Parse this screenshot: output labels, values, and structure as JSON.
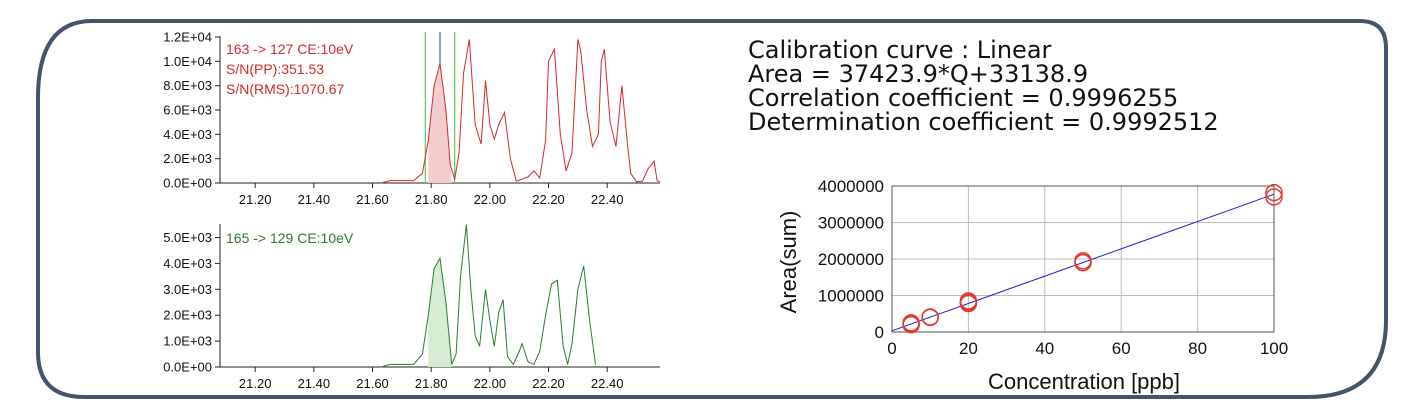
{
  "colors": {
    "frame": "#44546a",
    "red_trace": "#d42a2a",
    "red_fill": "#f4cccc",
    "green_trace": "#2d7a2d",
    "green_fill": "#d6ecd3",
    "integration_marker": "#66d166",
    "peak_marker": "#5a6ee0",
    "regression_line": "#1f1fd6",
    "calibration_points": "#e03a2a"
  },
  "chromatograms": [
    {
      "x_ticks": [
        "21.20",
        "21.40",
        "21.60",
        "21.80",
        "22.00",
        "22.20",
        "22.40"
      ],
      "y_ticks": [
        "0.0E+00",
        "2.0E+03",
        "4.0E+03",
        "6.0E+03",
        "8.0E+03",
        "1.0E+04",
        "1.2E+04"
      ],
      "labels": [
        "163 -> 127 CE:10eV",
        "S/N(PP):351.53",
        "S/N(RMS):1070.67"
      ]
    },
    {
      "x_ticks": [
        "21.20",
        "21.40",
        "21.60",
        "21.80",
        "22.00",
        "22.20",
        "22.40"
      ],
      "y_ticks": [
        "0.0E+00",
        "1.0E+03",
        "2.0E+03",
        "3.0E+03",
        "4.0E+03",
        "5.0E+03"
      ],
      "labels": [
        "165 -> 129 CE:10eV"
      ]
    }
  ],
  "calibration": {
    "lines": [
      "Calibration curve : Linear",
      "Area = 37423.9*Q+33138.9",
      "Correlation coefficient = 0.9996255",
      "Determination coefficient = 0.9992512"
    ]
  },
  "chart_data": [
    {
      "type": "line",
      "x_range": [
        21.08,
        22.58
      ],
      "ylim": [
        0,
        12000
      ],
      "peak_window": [
        21.78,
        21.88
      ],
      "peak_apex": 21.83,
      "series": [
        {
          "x": [
            21.63,
            21.66,
            21.74,
            21.77,
            21.79,
            21.81,
            21.83,
            21.85,
            21.865,
            21.88,
            21.895,
            21.91,
            21.93,
            21.95,
            21.97,
            21.985,
            22.0,
            22.015,
            22.03,
            22.05,
            22.07,
            22.09,
            22.11,
            22.13,
            22.15,
            22.17,
            22.19,
            22.2,
            22.22,
            22.24,
            22.26,
            22.28,
            22.3,
            22.31,
            22.33,
            22.35,
            22.37,
            22.38,
            22.39,
            22.41,
            22.43,
            22.45,
            22.47,
            22.48,
            22.5,
            22.52,
            22.54,
            22.56,
            22.57,
            22.58
          ],
          "y": [
            0,
            200,
            200,
            800,
            3500,
            8000,
            9800,
            6000,
            1500,
            300,
            2500,
            9000,
            11800,
            4800,
            3200,
            8400,
            4800,
            3600,
            4800,
            5800,
            2000,
            150,
            300,
            500,
            1000,
            400,
            3500,
            10000,
            11000,
            4000,
            1000,
            2500,
            11800,
            10800,
            6000,
            3000,
            4000,
            10000,
            11000,
            5000,
            3000,
            8000,
            3000,
            800,
            100,
            150,
            1200,
            1800,
            200,
            100
          ]
        }
      ]
    },
    {
      "type": "line",
      "x_range": [
        21.08,
        22.58
      ],
      "ylim": [
        0,
        5600
      ],
      "series": [
        {
          "x": [
            21.63,
            21.66,
            21.7,
            21.74,
            21.77,
            21.79,
            21.81,
            21.83,
            21.85,
            21.87,
            21.885,
            21.9,
            21.92,
            21.935,
            21.95,
            21.965,
            21.985,
            22.0,
            22.015,
            22.03,
            22.045,
            22.06,
            22.08,
            22.1,
            22.11,
            22.13,
            22.15,
            22.17,
            22.19,
            22.21,
            22.23,
            22.25,
            22.265,
            22.28,
            22.3,
            22.32,
            22.34,
            22.36
          ],
          "y": [
            0,
            100,
            100,
            100,
            500,
            2000,
            3800,
            4200,
            2500,
            100,
            500,
            3500,
            5500,
            3000,
            1200,
            800,
            3000,
            1800,
            800,
            2100,
            2600,
            400,
            100,
            600,
            900,
            200,
            100,
            600,
            2000,
            3200,
            3350,
            800,
            100,
            900,
            3000,
            3900,
            1800,
            100
          ]
        }
      ]
    },
    {
      "type": "scatter",
      "xlabel": "Concentration [ppb]",
      "ylabel": "Area(sum)",
      "xlim": [
        0,
        100
      ],
      "ylim": [
        0,
        4000000
      ],
      "x_ticks": [
        "0",
        "20",
        "40",
        "60",
        "80",
        "100"
      ],
      "y_ticks": [
        "0",
        "1000000",
        "2000000",
        "3000000",
        "4000000"
      ],
      "grid": true,
      "points": {
        "x": [
          5,
          5,
          5,
          10,
          10,
          20,
          20,
          20,
          50,
          50,
          100,
          100
        ],
        "y": [
          220000,
          250000,
          200000,
          410000,
          400000,
          780000,
          850000,
          820000,
          1900000,
          1950000,
          3700000,
          3820000
        ]
      },
      "fit_line": {
        "x": [
          0,
          100
        ],
        "y": [
          33138.9,
          3775528.9
        ]
      }
    }
  ]
}
